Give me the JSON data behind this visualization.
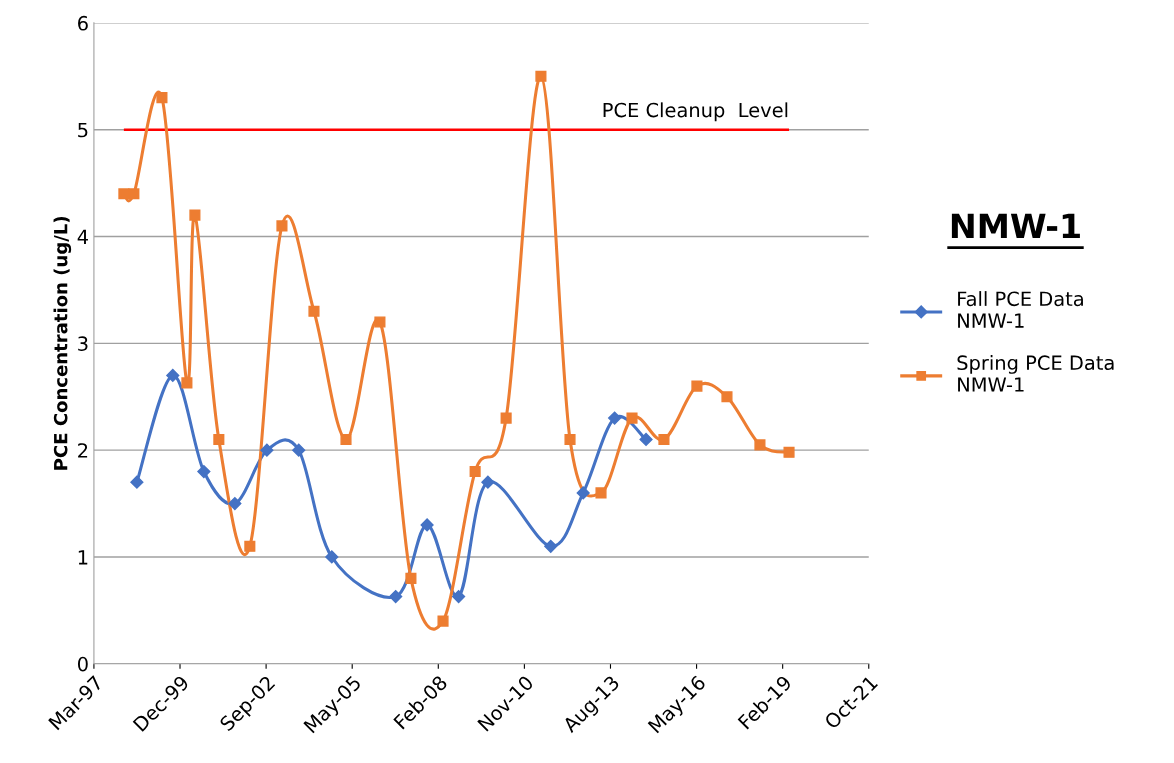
{
  "chart_data": {
    "type": "line",
    "title": "NMW-1",
    "ylabel": "PCE Concentration (ug/L)",
    "ylim": [
      0,
      6
    ],
    "yticks": [
      0,
      1,
      2,
      3,
      4,
      5,
      6
    ],
    "xlim": [
      "1997-03-11",
      "2021-10-31"
    ],
    "xticks": [
      {
        "value": "1997-03-11",
        "label": "Mar-97"
      },
      {
        "value": "1999-12-06",
        "label": "Dec-99"
      },
      {
        "value": "2002-09-01",
        "label": "Sep-02"
      },
      {
        "value": "2005-05-28",
        "label": "May-05"
      },
      {
        "value": "2008-02-22",
        "label": "Feb-08"
      },
      {
        "value": "2010-11-18",
        "label": "Nov-10"
      },
      {
        "value": "2013-08-14",
        "label": "Aug-13"
      },
      {
        "value": "2016-05-10",
        "label": "May-16"
      },
      {
        "value": "2019-02-04",
        "label": "Feb-19"
      },
      {
        "value": "2021-10-31",
        "label": "Oct-21"
      }
    ],
    "grid": "y",
    "legend": "right",
    "series": [
      {
        "name": "Fall PCE Data NMW-1",
        "color": "#4472c4",
        "marker": "diamond",
        "x": [
          "1998-07-23",
          "1999-09-13",
          "2000-09-08",
          "2001-09-03",
          "2002-09-10",
          "2003-09-15",
          "2004-10-03",
          "2006-10-15",
          "2007-10-15",
          "2008-10-15",
          "2009-09-20",
          "2011-09-20",
          "2012-10-01",
          "2013-10-01",
          "2014-10-01"
        ],
        "values": [
          1.7,
          2.7,
          1.8,
          1.5,
          2.0,
          2.0,
          1.0,
          0.63,
          1.3,
          0.63,
          1.7,
          1.1,
          1.6,
          2.3,
          2.1
        ]
      },
      {
        "name": "Spring PCE Data NMW-1",
        "color": "#ed7d31",
        "marker": "square",
        "x": [
          "1998-02-22",
          "1998-06-18",
          "1999-05-10",
          "2000-02-24",
          "2000-05-27",
          "2001-03-01",
          "2002-02-24",
          "2003-03-04",
          "2004-03-10",
          "2005-03-17",
          "2006-04-15",
          "2007-04-10",
          "2008-04-17",
          "2009-04-25",
          "2010-04-20",
          "2011-05-29",
          "2012-05-01",
          "2013-04-26",
          "2014-04-21",
          "2015-04-27",
          "2016-05-14",
          "2017-04-28",
          "2018-05-16",
          "2019-04-19"
        ],
        "values": [
          4.4,
          4.4,
          5.3,
          2.63,
          4.2,
          2.1,
          1.1,
          4.1,
          3.3,
          2.1,
          3.2,
          0.8,
          0.4,
          1.8,
          2.3,
          5.5,
          2.1,
          1.6,
          2.3,
          2.1,
          2.6,
          2.5,
          2.05,
          1.98
        ]
      }
    ],
    "ref_lines": [
      {
        "axis": "y",
        "value": 5,
        "label": "PCE Cleanup  Level",
        "color": "#ff0000"
      }
    ]
  }
}
